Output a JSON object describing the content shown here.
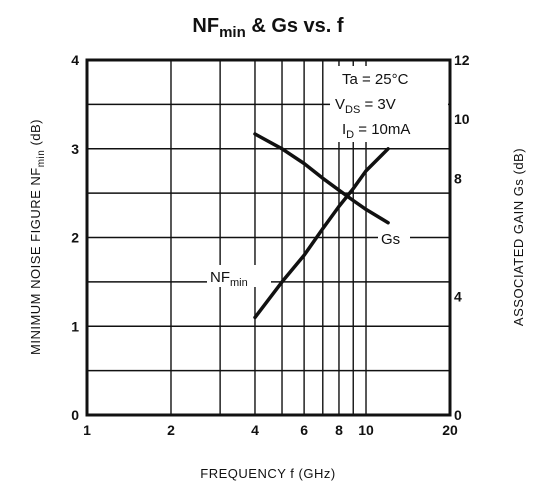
{
  "chart_data": {
    "type": "line",
    "title": {
      "main": "NF",
      "sub": "min",
      "rest": " & Gs vs. f"
    },
    "xlabel": "FREQUENCY f (GHz)",
    "ylabel_left": {
      "main": "MINIMUM NOISE FIGURE NF",
      "sub": "min",
      "unit": " (dB)"
    },
    "ylabel_right": "ASSOCIATED GAIN Gs (dB)",
    "x_scale": "log",
    "xlim": [
      1,
      20
    ],
    "ylim_left": [
      0,
      4
    ],
    "ylim_right": [
      0,
      12
    ],
    "x_ticks": [
      1,
      2,
      4,
      6,
      8,
      10,
      20
    ],
    "x_gridlines": [
      1,
      2,
      3,
      4,
      5,
      6,
      7,
      8,
      9,
      10,
      20
    ],
    "y_ticks_left": [
      0,
      1,
      2,
      3,
      4
    ],
    "y_ticks_right": [
      0,
      4,
      8,
      10,
      12
    ],
    "grid": true,
    "conditions": [
      {
        "pre": "Ta = 25°C",
        "sub": "",
        "post": ""
      },
      {
        "pre": "V",
        "sub": "DS",
        "post": " = 3V"
      },
      {
        "pre": "I",
        "sub": "D",
        "post": " = 10mA"
      }
    ],
    "series": [
      {
        "name": "NF",
        "name_sub": "min",
        "axis": "left",
        "x": [
          4,
          5,
          6,
          7,
          8,
          9,
          10,
          12
        ],
        "y": [
          1.1,
          1.5,
          1.8,
          2.1,
          2.35,
          2.55,
          2.75,
          3.0
        ]
      },
      {
        "name": "Gs",
        "name_sub": "",
        "axis": "right",
        "x": [
          4,
          5,
          6,
          7,
          8,
          9,
          10,
          12
        ],
        "y": [
          9.5,
          9.0,
          8.5,
          8.0,
          7.6,
          7.25,
          6.95,
          6.5
        ]
      }
    ]
  }
}
